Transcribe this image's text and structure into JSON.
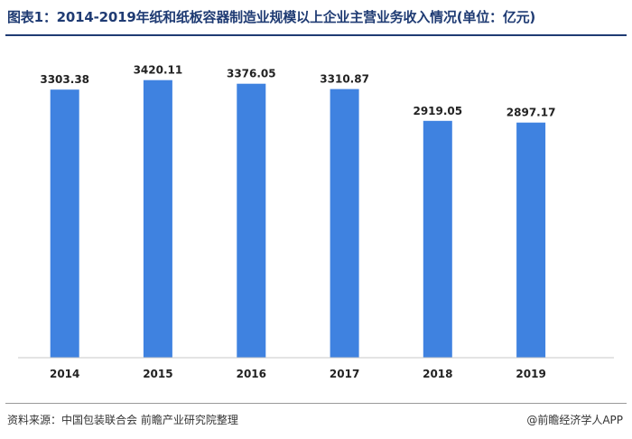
{
  "title": "图表1：2014-2019年纸和纸板容器制造业规模以上企业主营业务收入情况(单位：亿元)",
  "source": "资料来源：中国包装联合会 前瞻产业研究院整理",
  "brand": "@前瞻经济学人APP",
  "colors": {
    "bar": "#3f82e0",
    "title": "#1f3b73",
    "axis": "#c8c8c8"
  },
  "chart_data": {
    "type": "bar",
    "categories": [
      "2014",
      "2015",
      "2016",
      "2017",
      "2018",
      "2019"
    ],
    "values": [
      3303.38,
      3420.11,
      3376.05,
      3310.87,
      2919.05,
      2897.17
    ],
    "value_labels": [
      "3303.38",
      "3420.11",
      "3376.05",
      "3310.87",
      "2919.05",
      "2897.17"
    ],
    "ylim": [
      0,
      3740
    ],
    "grid": false,
    "legend": "none"
  }
}
